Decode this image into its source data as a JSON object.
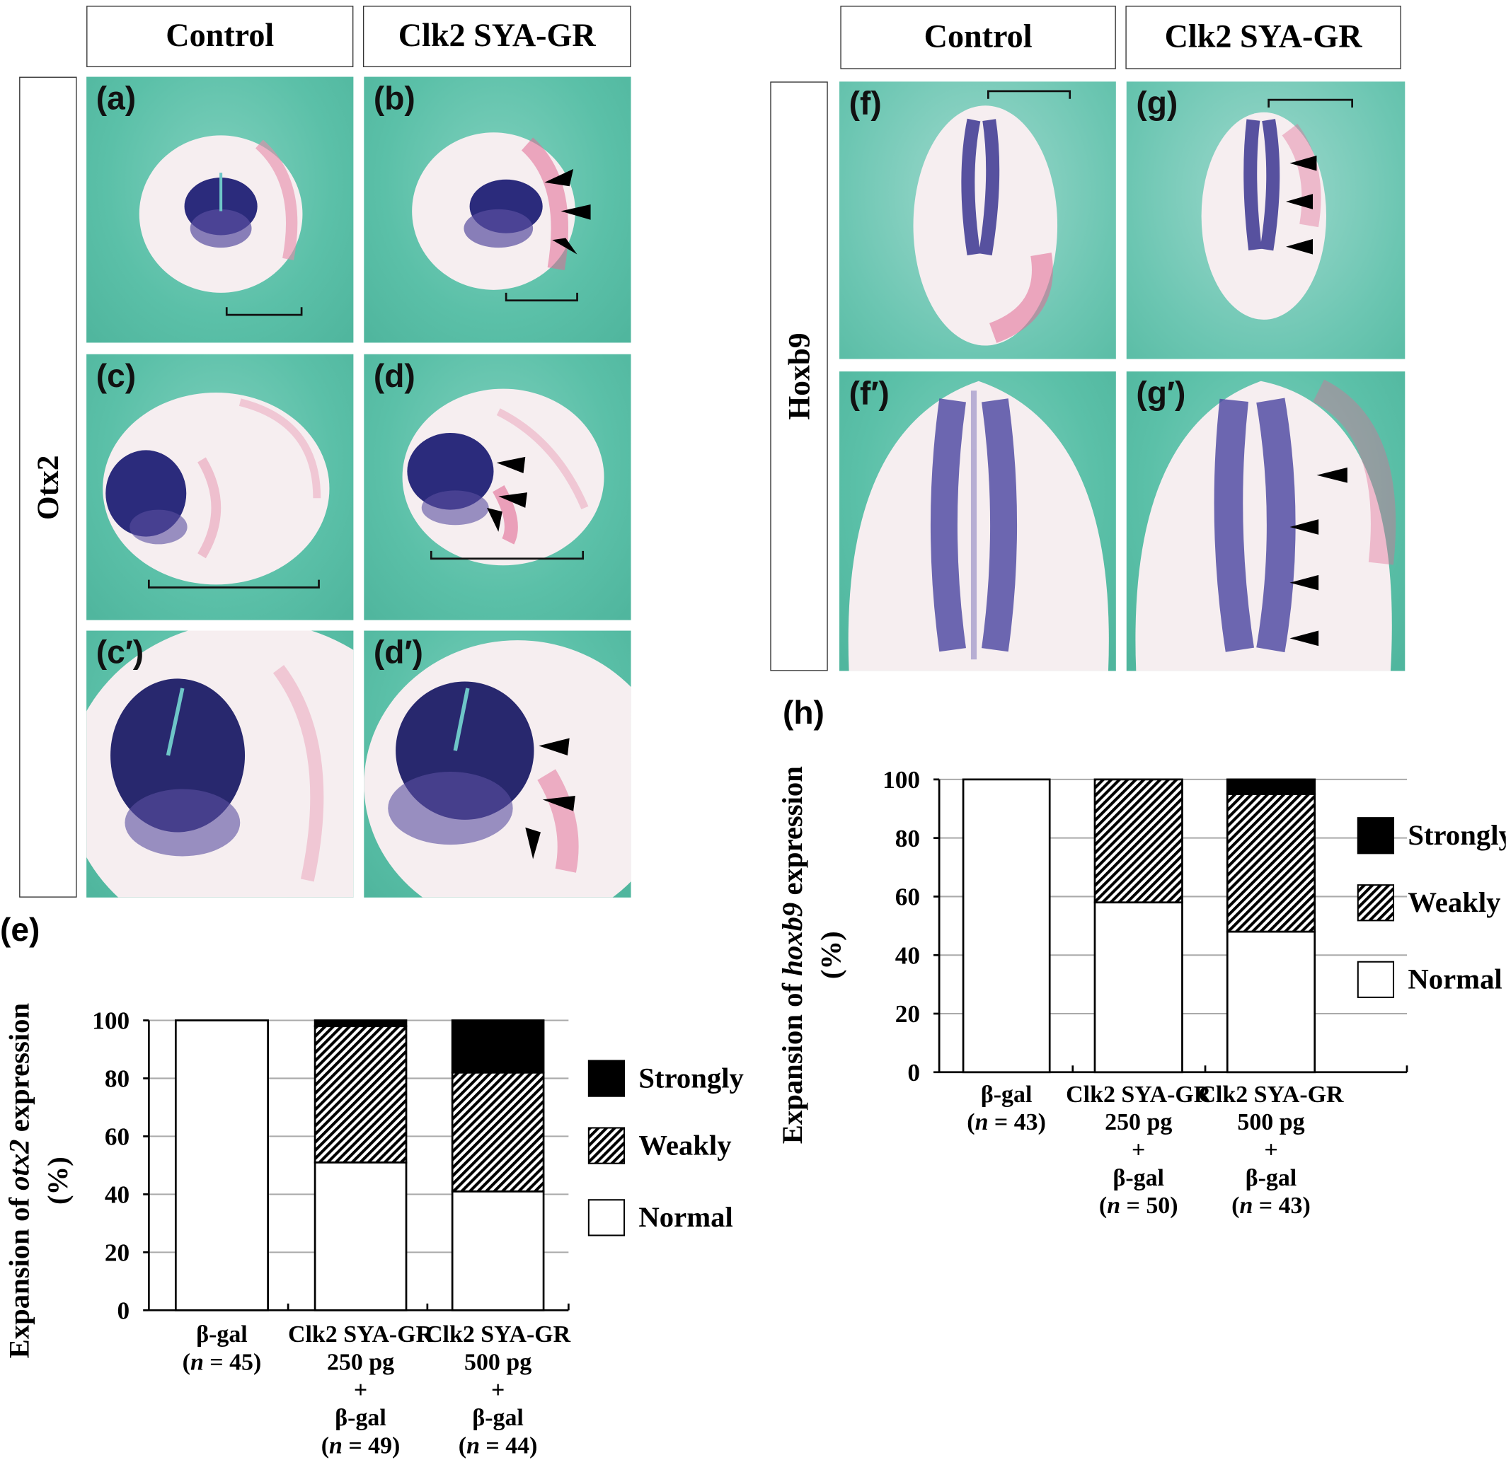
{
  "left": {
    "headers": [
      "Control",
      "Clk2 SYA-GR"
    ],
    "row_label": "Otx2",
    "panels": [
      "(a)",
      "(b)",
      "(c)",
      "(d)",
      "(c′)",
      "(d′)"
    ]
  },
  "right": {
    "headers": [
      "Control",
      "Clk2 SYA-GR"
    ],
    "row_label": "Hoxb9",
    "panels": [
      "(f)",
      "(g)",
      "(f′)",
      "(g′)"
    ]
  },
  "chart_labels": {
    "e": "(e)",
    "h": "(h)"
  },
  "chart_data": [
    {
      "id": "e",
      "type": "bar",
      "stacked": true,
      "title": "",
      "ylabel_lines": [
        "Expansion of otx2 expression",
        "(%)"
      ],
      "ylabel_italic": "otx2",
      "xlabel": "",
      "ylim": [
        0,
        100
      ],
      "yticks": [
        0,
        20,
        40,
        60,
        80,
        100
      ],
      "grid": true,
      "legend_position": "right",
      "categories": [
        [
          "β-gal",
          "(n = 45)"
        ],
        [
          "Clk2 SYA-GR",
          "250 pg",
          "+",
          "β-gal",
          "(n = 49)"
        ],
        [
          "Clk2 SYA-GR",
          "500 pg",
          "+",
          "β-gal",
          "(n = 44)"
        ]
      ],
      "series": [
        {
          "name": "Normal",
          "fill": "#ffffff",
          "values": [
            100,
            51,
            41
          ]
        },
        {
          "name": "Weakly",
          "fill": "hatch",
          "values": [
            0,
            47,
            41
          ]
        },
        {
          "name": "Strongly",
          "fill": "#000000",
          "values": [
            0,
            2,
            18
          ]
        }
      ]
    },
    {
      "id": "h",
      "type": "bar",
      "stacked": true,
      "title": "",
      "ylabel_lines": [
        "Expansion of hoxb9 expression",
        "(%)"
      ],
      "ylabel_italic": "hoxb9",
      "xlabel": "",
      "ylim": [
        0,
        100
      ],
      "yticks": [
        0,
        20,
        40,
        60,
        80,
        100
      ],
      "grid": true,
      "legend_position": "right",
      "categories": [
        [
          "β-gal",
          "(n = 43)"
        ],
        [
          "Clk2 SYA-GR",
          "250 pg",
          "+",
          "β-gal",
          "(n = 50)"
        ],
        [
          "Clk2 SYA-GR",
          "500 pg",
          "+",
          "β-gal",
          "(n = 43)"
        ]
      ],
      "series": [
        {
          "name": "Normal",
          "fill": "#ffffff",
          "values": [
            100,
            58,
            48
          ]
        },
        {
          "name": "Weakly",
          "fill": "hatch",
          "values": [
            0,
            42,
            47
          ]
        },
        {
          "name": "Strongly",
          "fill": "#000000",
          "values": [
            0,
            0,
            5
          ]
        }
      ]
    }
  ],
  "colors": {
    "background_teal": "#5bc0a8",
    "stain_purple": "#2a2a78",
    "stain_pink": "#e0608a"
  }
}
